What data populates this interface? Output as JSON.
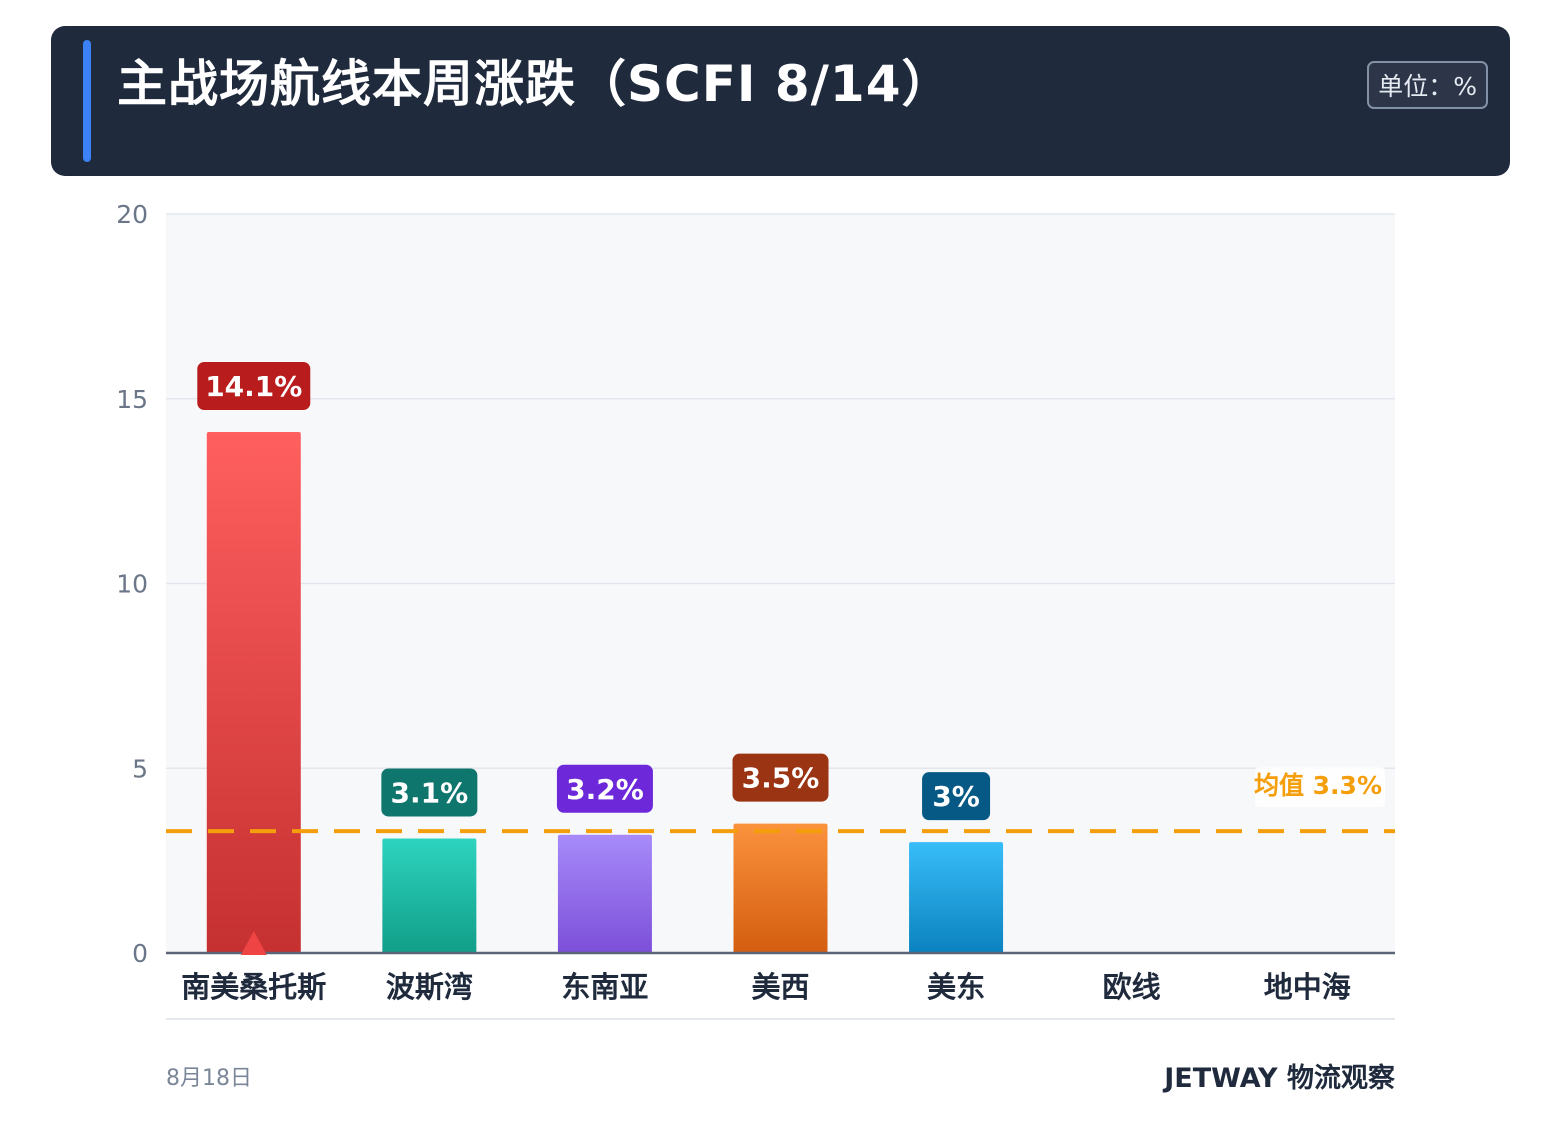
{
  "header": {
    "title": "主战场航线本周涨跌（SCFI 8/14）",
    "unit": "单位：%"
  },
  "footer": {
    "date": "8月18日",
    "brand": "JETWAY 物流观察"
  },
  "colors": {
    "header_bg": "#1f2a3d",
    "accent": "#3b82f6",
    "avg_line": "#f59e0b",
    "plot_bg": "#f7f8fa"
  },
  "chart_data": {
    "type": "bar",
    "categories": [
      "南美桑托斯",
      "波斯湾",
      "东南亚",
      "美西",
      "美东",
      "欧线",
      "地中海"
    ],
    "values": [
      14.1,
      3.1,
      3.2,
      3.5,
      3.0,
      null,
      null
    ],
    "value_labels": [
      "14.1%",
      "3.1%",
      "3.2%",
      "3.5%",
      "3%",
      "",
      ""
    ],
    "bar_colors": [
      {
        "top": "#ff5f5f",
        "bottom": "#c53030",
        "label_bg": "#b91c1c"
      },
      {
        "top": "#2dd4bf",
        "bottom": "#119e88",
        "label_bg": "#0f766e"
      },
      {
        "top": "#a78bfa",
        "bottom": "#7c4fd8",
        "label_bg": "#6d28d9"
      },
      {
        "top": "#fb923c",
        "bottom": "#d35d10",
        "label_bg": "#9a3412"
      },
      {
        "top": "#38bdf8",
        "bottom": "#0b82c0",
        "label_bg": "#075985"
      },
      {
        "top": "#cccccc",
        "bottom": "#999999",
        "label_bg": "#666666"
      },
      {
        "top": "#cccccc",
        "bottom": "#999999",
        "label_bg": "#666666"
      }
    ],
    "yticks": [
      0,
      5,
      10,
      15,
      20
    ],
    "ylim": [
      0,
      20
    ],
    "average": 3.3,
    "average_label": "均值 3.3%",
    "highlight_marker_index": 0,
    "grid": true
  }
}
